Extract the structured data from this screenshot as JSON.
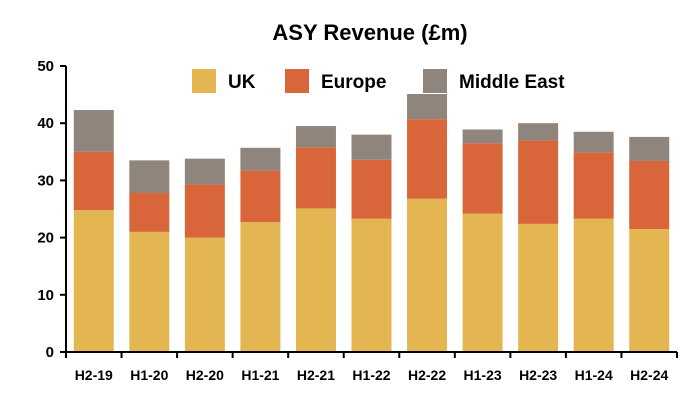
{
  "chart_data": {
    "type": "bar",
    "stacked": true,
    "title": "ASY Revenue (£m)",
    "xlabel": "",
    "ylabel": "",
    "ylim": [
      0,
      50
    ],
    "yticks": [
      0,
      10,
      20,
      30,
      40,
      50
    ],
    "grid": false,
    "legend": "top-center",
    "categories": [
      "H2-19",
      "H1-20",
      "H2-20",
      "H1-21",
      "H2-21",
      "H1-22",
      "H2-22",
      "H1-23",
      "H2-23",
      "H1-24",
      "H2-24"
    ],
    "series": [
      {
        "name": "UK",
        "color": "#e3b651",
        "values": [
          24.8,
          21.0,
          20.0,
          22.7,
          25.1,
          23.3,
          26.8,
          24.2,
          22.4,
          23.3,
          21.5
        ]
      },
      {
        "name": "Europe",
        "color": "#d9653b",
        "values": [
          10.2,
          6.8,
          9.3,
          9.0,
          10.7,
          10.3,
          13.9,
          12.3,
          14.6,
          11.6,
          11.9
        ]
      },
      {
        "name": "Middle East",
        "color": "#8f857c",
        "values": [
          7.3,
          5.7,
          4.5,
          4.0,
          3.7,
          4.4,
          4.4,
          2.4,
          3.0,
          3.6,
          4.2
        ]
      }
    ]
  }
}
